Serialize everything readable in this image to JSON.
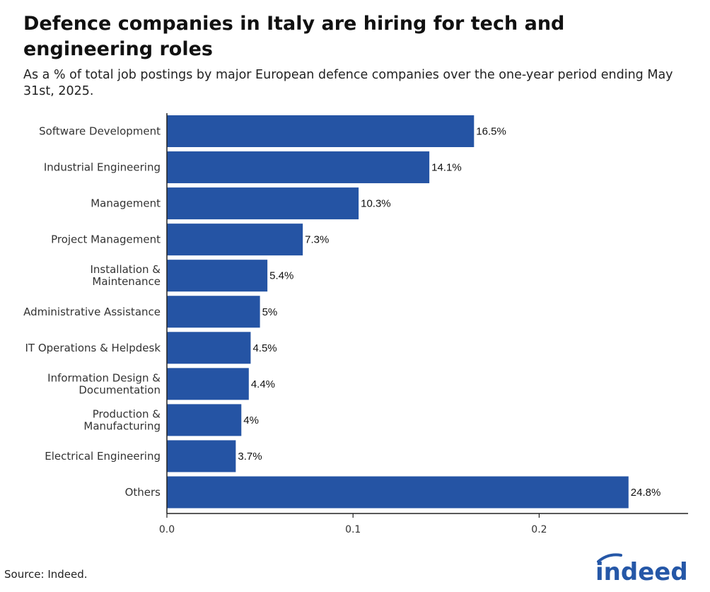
{
  "header": {
    "title": "Defence companies in Italy are hiring for tech and engineering roles",
    "subtitle": "As a % of total job postings by major European defence companies over the one-year period ending May 31st, 2025."
  },
  "footer": {
    "source": "Source: Indeed.",
    "logo_text": "indeed"
  },
  "colors": {
    "bar": "#2554a4",
    "logo": "#2557a7"
  },
  "chart_data": {
    "type": "bar",
    "orientation": "horizontal",
    "title": "Defence companies in Italy are hiring for tech and engineering roles",
    "subtitle": "As a % of total job postings by major European defence companies over the one-year period ending May 31st, 2025.",
    "xlabel": "",
    "ylabel": "",
    "xlim": [
      0,
      0.28
    ],
    "grid": false,
    "categories": [
      [
        "Software Development"
      ],
      [
        "Industrial Engineering"
      ],
      [
        "Management"
      ],
      [
        "Project Management"
      ],
      [
        "Installation &",
        "Maintenance"
      ],
      [
        "Administrative Assistance"
      ],
      [
        "IT Operations & Helpdesk"
      ],
      [
        "Information Design &",
        "Documentation"
      ],
      [
        "Production &",
        "Manufacturing"
      ],
      [
        "Electrical Engineering"
      ],
      [
        "Others"
      ]
    ],
    "values": [
      0.165,
      0.141,
      0.103,
      0.073,
      0.054,
      0.05,
      0.045,
      0.044,
      0.04,
      0.037,
      0.248
    ],
    "value_labels": [
      "16.5%",
      "14.1%",
      "10.3%",
      "7.3%",
      "5.4%",
      "5%",
      "4.5%",
      "4.4%",
      "4%",
      "3.7%",
      "24.8%"
    ],
    "x_ticks": [
      0,
      0.1,
      0.2
    ],
    "x_tick_labels": [
      "0.0",
      "0.1",
      "0.2"
    ]
  }
}
